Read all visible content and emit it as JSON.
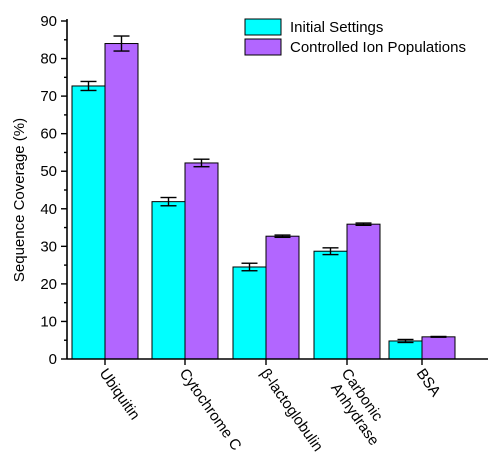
{
  "chart_data": {
    "type": "bar",
    "title": "",
    "xlabel": "",
    "ylabel": "Sequence Coverage (%)",
    "ylim": [
      0,
      90
    ],
    "yticks": [
      0,
      10,
      20,
      30,
      40,
      50,
      60,
      70,
      80,
      90
    ],
    "categories": [
      "Ubiquitin",
      "Cytochrome C",
      "β-lactoglobulin",
      "Carbonic Anhydrase",
      "BSA"
    ],
    "category_lines": [
      [
        "Ubiquitin"
      ],
      [
        "Cytochrome C"
      ],
      [
        "β-lactoglobulin"
      ],
      [
        "Carbonic",
        "Anhydrase"
      ],
      [
        "BSA"
      ]
    ],
    "series": [
      {
        "name": "Initial Settings",
        "color": "#00FFFF",
        "values": [
          72.7,
          41.9,
          24.5,
          28.7,
          4.8
        ],
        "errors": [
          1.2,
          1.1,
          1.0,
          0.9,
          0.4
        ]
      },
      {
        "name": "Controlled Ion Populations",
        "color": "#B266FF",
        "values": [
          84.0,
          52.2,
          32.7,
          35.9,
          5.9
        ],
        "errors": [
          2.0,
          1.0,
          0.3,
          0.3,
          0.1
        ]
      }
    ],
    "legend": {
      "position": "top-right"
    },
    "grid": false
  }
}
